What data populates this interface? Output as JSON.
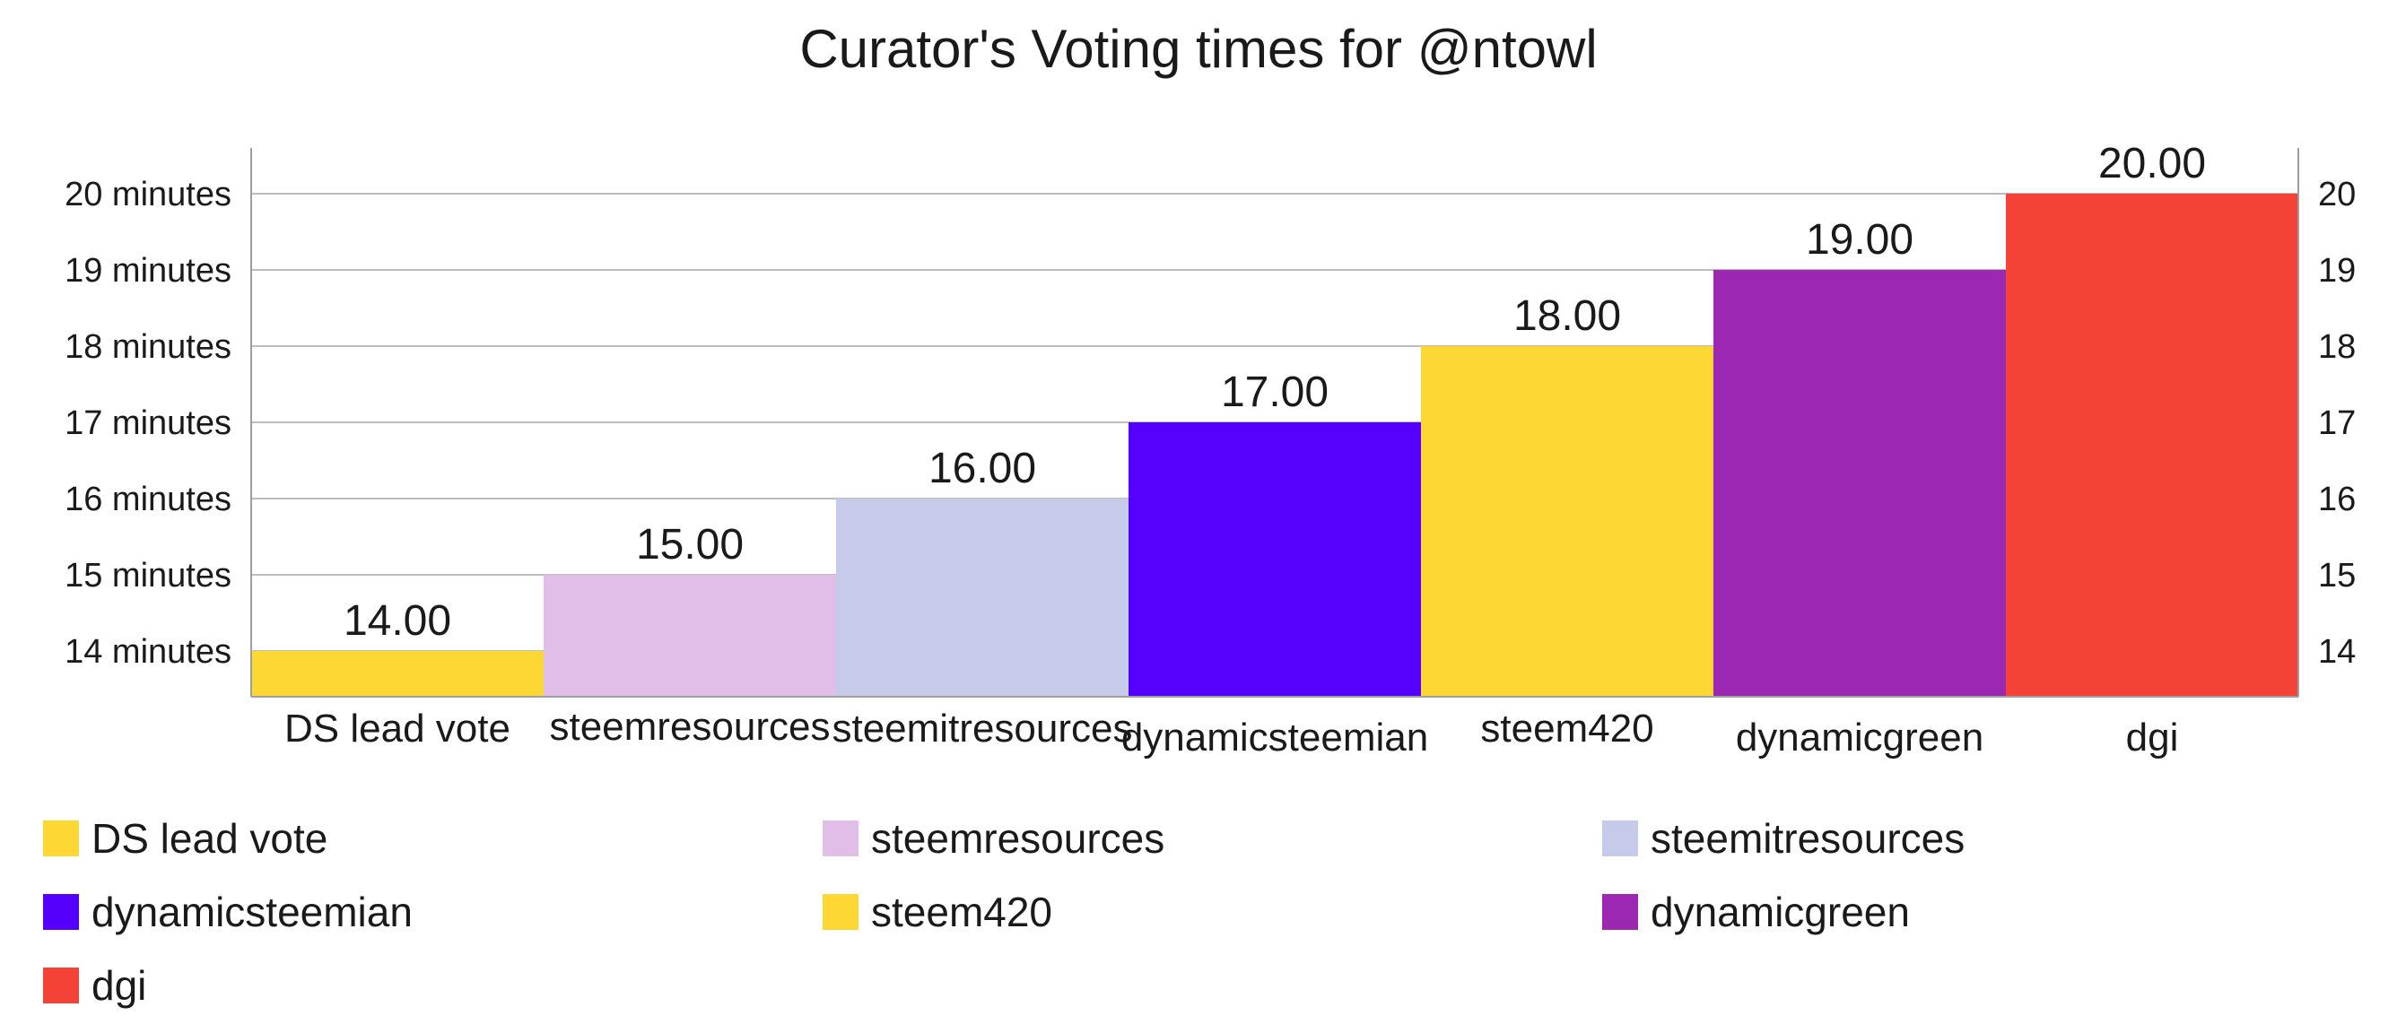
{
  "chart_data": {
    "type": "bar",
    "title": "Curator's Voting times for @ntowl",
    "categories": [
      "DS lead vote",
      "steemresources",
      "steemitresources",
      "dynamicsteemian",
      "steem420",
      "dynamicgreen",
      "dgi"
    ],
    "values": [
      14,
      15,
      16,
      17,
      18,
      19,
      20
    ],
    "data_labels": [
      "14.00",
      "15.00",
      "16.00",
      "17.00",
      "18.00",
      "19.00",
      "20.00"
    ],
    "colors": [
      "#fdd835",
      "#e1bee7",
      "#c5cae9",
      "#5500ff",
      "#fdd835",
      "#9c27b0",
      "#f44336"
    ],
    "yticks": [
      14,
      15,
      16,
      17,
      18,
      19,
      20
    ],
    "ytick_labels": [
      "14 minutes",
      "15 minutes",
      "16 minutes",
      "17 minutes",
      "18 minutes",
      "19 minutes",
      "20 minutes"
    ],
    "ytick_labels_right": [
      "14",
      "15",
      "16",
      "17",
      "18",
      "19",
      "20"
    ],
    "ylim": [
      13.4,
      20.6
    ],
    "grid": true,
    "legend_position": "bottom",
    "xlabel": "",
    "ylabel": ""
  }
}
